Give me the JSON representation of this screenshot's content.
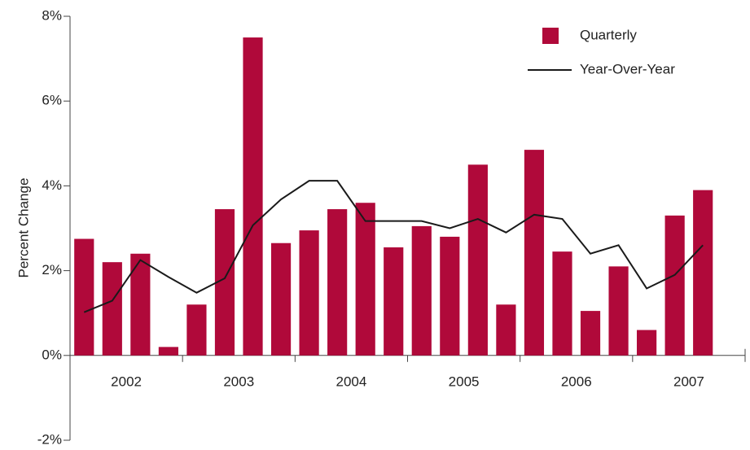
{
  "chart_data": {
    "type": "bar",
    "y_label": "Percent Change",
    "categories": [
      "2002",
      null,
      null,
      null,
      "2003",
      null,
      null,
      null,
      "2004",
      null,
      null,
      null,
      "2005",
      null,
      null,
      null,
      "2006",
      null,
      null,
      null,
      "2007",
      null,
      null,
      null
    ],
    "series": [
      {
        "name": "Quarterly",
        "type": "bar",
        "color": "#b0093a",
        "values": [
          2.75,
          2.2,
          2.4,
          0.2,
          1.2,
          3.45,
          7.5,
          2.65,
          2.95,
          3.45,
          3.6,
          2.55,
          3.05,
          2.8,
          4.5,
          1.2,
          4.85,
          2.45,
          1.05,
          2.1,
          0.6,
          3.3,
          3.9,
          null
        ]
      },
      {
        "name": "Year-Over-Year",
        "type": "line",
        "color": "#1a1a1a",
        "values": [
          1.02,
          1.29,
          2.25,
          1.85,
          1.48,
          1.82,
          3.07,
          3.68,
          4.12,
          4.12,
          3.17,
          3.17,
          3.17,
          3.0,
          3.22,
          2.9,
          3.32,
          3.22,
          2.4,
          2.6,
          1.58,
          1.9,
          2.6,
          null
        ]
      }
    ],
    "ylim": [
      -2,
      8
    ],
    "yticks": [
      {
        "value": -2,
        "label": "-2%"
      },
      {
        "value": 0,
        "label": "0%"
      },
      {
        "value": 2,
        "label": "2%"
      },
      {
        "value": 4,
        "label": "4%"
      },
      {
        "value": 6,
        "label": "6%"
      },
      {
        "value": 8,
        "label": "8%"
      }
    ],
    "legend": "upper right"
  }
}
